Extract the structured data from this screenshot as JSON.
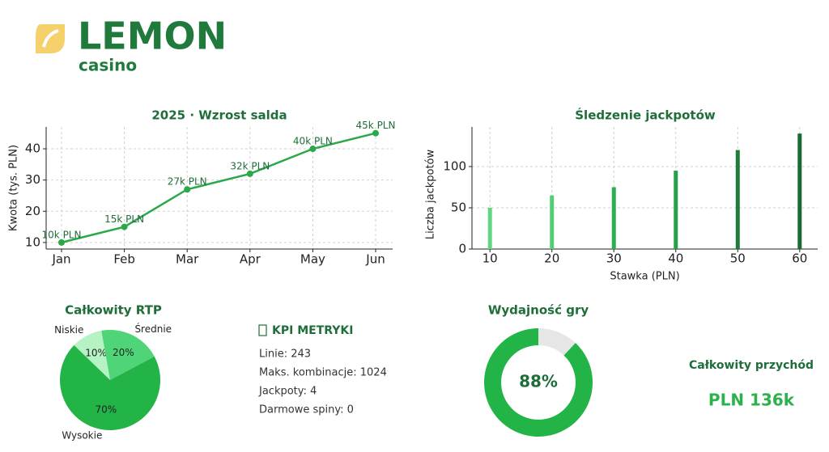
{
  "logo": {
    "name": "LEMON",
    "tagline": "casino"
  },
  "chart_data": [
    {
      "type": "line",
      "title": "2025 · Wzrost salda",
      "ylabel": "Kwota (tys. PLN)",
      "categories": [
        "Jan",
        "Feb",
        "Mar",
        "Apr",
        "May",
        "Jun"
      ],
      "values": [
        10,
        15,
        27,
        32,
        40,
        45
      ],
      "value_labels": [
        "10k PLN",
        "15k PLN",
        "27k PLN",
        "32k PLN",
        "40k PLN",
        "45k PLN"
      ],
      "color": "#2aa84a",
      "ylim": [
        7.9,
        47
      ],
      "yticks": [
        10,
        20,
        30,
        40
      ],
      "grid": true
    },
    {
      "type": "bar",
      "title": "Śledzenie jackpotów",
      "xlabel": "Stawka (PLN)",
      "ylabel": "Liczba jackpotów",
      "x": [
        10,
        20,
        30,
        40,
        50,
        60
      ],
      "values": [
        50,
        65,
        75,
        95,
        120,
        140
      ],
      "colors": [
        "#5fd680",
        "#52cf74",
        "#2dae52",
        "#26a049",
        "#1d7c3b",
        "#196b33"
      ],
      "xlim": [
        7.1,
        62.9
      ],
      "xticks": [
        10,
        20,
        30,
        40,
        50,
        60
      ],
      "ylim": [
        0,
        148
      ],
      "yticks": [
        0,
        50,
        100
      ],
      "grid": true
    },
    {
      "type": "pie",
      "title": "Całkowity RTP",
      "categories": [
        "Niskie",
        "Średnie",
        "Wysokie"
      ],
      "values": [
        10,
        20,
        70
      ],
      "value_labels": [
        "10%",
        "20%",
        "70%"
      ],
      "colors": [
        "#b5f2c4",
        "#4fd478",
        "#22b446"
      ]
    },
    {
      "type": "donut",
      "title": "Wydajność gry",
      "value": 88,
      "value_label": "88%",
      "ylim": [
        0,
        100
      ],
      "colors": [
        "#22b446",
        "#e6e6e6"
      ]
    }
  ],
  "kpi": {
    "title": "KPI METRYKI",
    "items": [
      "Linie: 243",
      "Maks. kombinacje: 1024",
      "Jackpoty: 4",
      "Darmowe spiny: 0"
    ]
  },
  "revenue": {
    "title": "Całkowity przychód",
    "value": "PLN 136k"
  }
}
